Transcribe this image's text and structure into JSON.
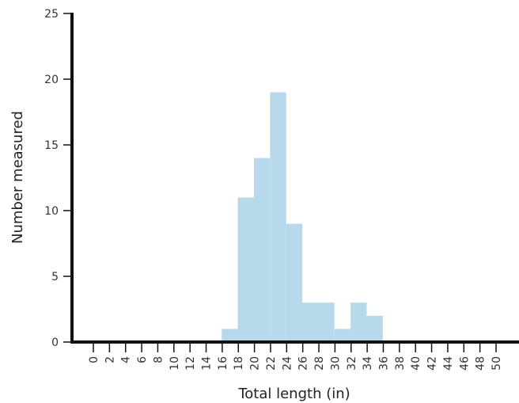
{
  "chart_data": {
    "type": "bar",
    "title": "",
    "xlabel": "Total length (in)",
    "ylabel": "Number measured",
    "xlim": [
      0,
      51
    ],
    "ylim": [
      0,
      25
    ],
    "x_ticks": [
      0,
      2,
      4,
      6,
      8,
      10,
      12,
      14,
      16,
      18,
      20,
      22,
      24,
      26,
      28,
      30,
      32,
      34,
      36,
      38,
      40,
      42,
      44,
      46,
      48,
      50
    ],
    "y_ticks": [
      0,
      5,
      10,
      15,
      20,
      25
    ],
    "bin_width": 2,
    "bins": [
      {
        "x0": 18,
        "x1": 20,
        "value": 1
      },
      {
        "x0": 20,
        "x1": 22,
        "value": 11
      },
      {
        "x0": 22,
        "x1": 24,
        "value": 14
      },
      {
        "x0": 24,
        "x1": 26,
        "value": 19
      },
      {
        "x0": 26,
        "x1": 28,
        "value": 9
      },
      {
        "x0": 28,
        "x1": 30,
        "value": 3
      },
      {
        "x0": 30,
        "x1": 32,
        "value": 3
      },
      {
        "x0": 32,
        "x1": 34,
        "value": 1
      },
      {
        "x0": 34,
        "x1": 36,
        "value": 3
      },
      {
        "x0": 36,
        "x1": 38,
        "value": 2
      }
    ],
    "grid": false,
    "legend": "none",
    "bar_color": "#b8d8eb"
  }
}
